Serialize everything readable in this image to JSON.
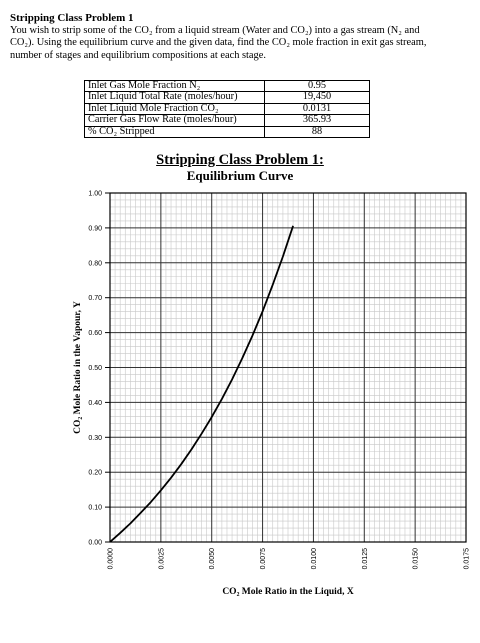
{
  "problem": {
    "title": "Stripping Class Problem 1",
    "statement_line1": "You wish to strip some of the CO₂ from a liquid stream (Water and CO₂) into a gas stream (N₂ and",
    "statement_line2": "CO₂). Using the equilibrium curve and the given data, find the CO₂ mole fraction in exit gas stream,",
    "statement_line3": "number of stages and equilibrium compositions at each stage."
  },
  "params": [
    {
      "label": "Inlet Gas Mole Fraction N₂",
      "value": "0.95"
    },
    {
      "label": "Inlet Liquid Total Rate (moles/hour)",
      "value": "19,450"
    },
    {
      "label": "Inlet Liquid Mole Fraction CO₂",
      "value": "0.0131"
    },
    {
      "label": "Carrier Gas Flow Rate (moles/hour)",
      "value": "365.93"
    },
    {
      "label": "% CO₂ Stripped",
      "value": "88"
    }
  ],
  "chart_data": {
    "type": "line",
    "title": "Stripping Class Problem 1:",
    "subtitle": "Equilibrium Curve",
    "xlabel": "CO₂ Mole Ratio in the Liquid, X",
    "ylabel": "CO₂ Mole Ratio in the Vapour, Y",
    "xlim": [
      0,
      0.0175
    ],
    "ylim": [
      0,
      1.0
    ],
    "x_ticks": [
      "0.0000",
      "0.0025",
      "0.0050",
      "0.0075",
      "0.0100",
      "0.0125",
      "0.0150",
      "0.0175"
    ],
    "y_ticks": [
      "0.00",
      "0.10",
      "0.20",
      "0.30",
      "0.40",
      "0.50",
      "0.60",
      "0.70",
      "0.80",
      "0.90",
      "1.00"
    ],
    "grid": true,
    "series": [
      {
        "x": [
          0,
          0.0005,
          0.001,
          0.0015,
          0.002,
          0.0025,
          0.003,
          0.0035,
          0.004,
          0.0045,
          0.005,
          0.0055,
          0.006,
          0.0065,
          0.007,
          0.0075,
          0.008,
          0.0085,
          0.009
        ],
        "y": [
          0,
          0.026,
          0.053,
          0.083,
          0.114,
          0.148,
          0.184,
          0.223,
          0.265,
          0.31,
          0.358,
          0.41,
          0.466,
          0.526,
          0.591,
          0.661,
          0.737,
          0.818,
          0.906
        ]
      }
    ],
    "color": "#000000"
  }
}
